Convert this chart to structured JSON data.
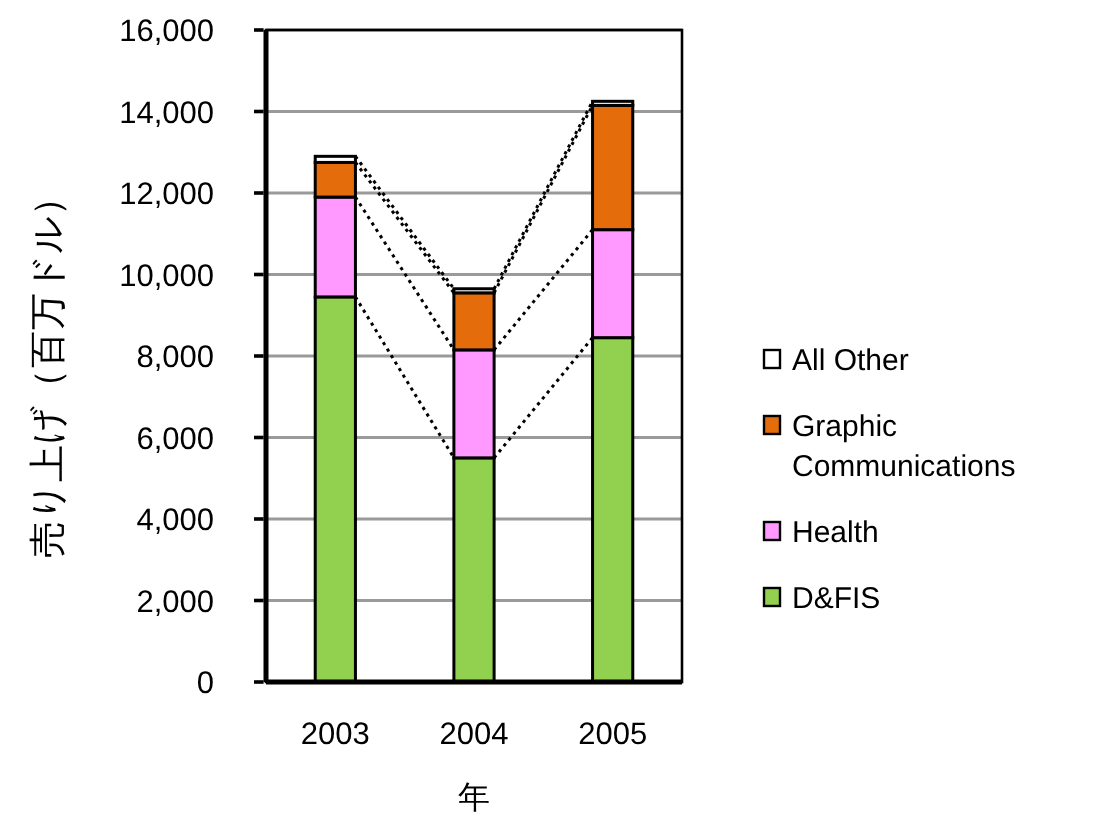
{
  "chart_data": {
    "type": "bar",
    "stacked": true,
    "categories": [
      "2003",
      "2004",
      "2005"
    ],
    "xlabel": "年",
    "ylabel": "売り上げ（百万ドル）",
    "series": [
      {
        "name": "D&FIS",
        "color": "#92d050",
        "values": [
          9450,
          5500,
          8450
        ]
      },
      {
        "name": "Health",
        "color": "#ff99ff",
        "values": [
          2450,
          2650,
          2650
        ]
      },
      {
        "name": "Graphic Communications",
        "color": "#e46c0a",
        "values": [
          850,
          1400,
          3050
        ]
      },
      {
        "name": "All Other",
        "color": "#ffffff",
        "values": [
          150,
          100,
          100
        ]
      }
    ],
    "ylim": [
      0,
      16000
    ],
    "yticks": [
      0,
      {
        "value": 2000,
        "label": "2,000"
      },
      {
        "value": 4000,
        "label": "4,000"
      },
      {
        "value": 6000,
        "label": "6,000"
      },
      {
        "value": 8000,
        "label": "8,000"
      },
      {
        "value": 10000,
        "label": "10,000"
      },
      {
        "value": 12000,
        "label": "12,000"
      },
      {
        "value": 14000,
        "label": "14,000"
      },
      {
        "value": 16000,
        "label": "16,000"
      }
    ],
    "grid": "y",
    "legend": "right",
    "line_style": "dotted"
  }
}
